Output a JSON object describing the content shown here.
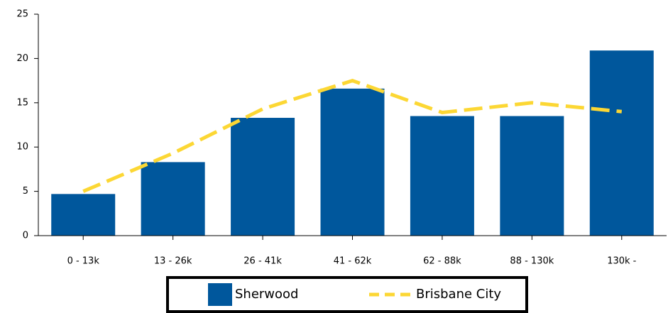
{
  "chart_data": {
    "type": "bar",
    "categories": [
      "0 - 13k",
      "13 - 26k",
      "26 - 41k",
      "41 - 62k",
      "62 - 88k",
      "88 - 130k",
      "130k -"
    ],
    "series": [
      {
        "name": "Sherwood",
        "type": "bar",
        "color": "#00579c",
        "values": [
          4.7,
          8.3,
          13.3,
          16.6,
          13.5,
          13.5,
          20.9
        ]
      },
      {
        "name": "Brisbane City",
        "type": "line",
        "color": "#fcd734",
        "values": [
          5.0,
          9.3,
          14.3,
          17.5,
          13.9,
          15.0,
          14.0
        ]
      }
    ],
    "ylim": [
      0,
      25
    ],
    "yticks": [
      0,
      5,
      10,
      15,
      20,
      25
    ],
    "grid": false,
    "legend": "bottom"
  }
}
